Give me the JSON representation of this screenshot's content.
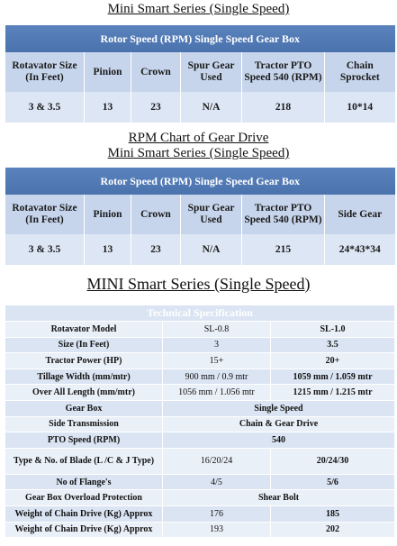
{
  "gear_tables": [
    {
      "heading_lines": [
        "Mini Smart Series (Single Speed)"
      ],
      "caption": "Rotor Speed (RPM) Single Speed Gear  Box",
      "columns": [
        "Rotavator Size (In Feet)",
        "Pinion",
        "Crown",
        "Spur Gear Used",
        "Tractor PTO Speed 540 (RPM)",
        "Chain Sprocket"
      ],
      "rows": [
        [
          "3 & 3.5",
          "13",
          "23",
          "N/A",
          "218",
          "10*14"
        ]
      ]
    },
    {
      "heading_lines": [
        "RPM Chart of Gear Drive",
        "Mini Smart Series (Single Speed)"
      ],
      "caption": "Rotor Speed (RPM) Single Speed Gear  Box",
      "columns": [
        "Rotavator Size (In Feet)",
        "Pinion",
        "Crown",
        "Spur Gear Used",
        "Tractor PTO Speed 540 (RPM)",
        "Side Gear"
      ],
      "rows": [
        [
          "3 & 3.5",
          "13",
          "23",
          "N/A",
          "215",
          "24*43*34"
        ]
      ]
    }
  ],
  "spec": {
    "heading": "MINI Smart Series (Single Speed)",
    "caption": "Technical Specification",
    "rows": [
      [
        "Rotavator Model",
        "SL-0.8",
        "SL-1.0"
      ],
      [
        "Size (In Feet)",
        "3",
        "3.5"
      ],
      [
        "Tractor Power (HP)",
        "15+",
        "20+"
      ],
      [
        "Tillage Width (mm/mtr)",
        "900 mm / 0.9 mtr",
        "1059 mm / 1.059 mtr"
      ],
      [
        "Over All Length (mm/mtr)",
        "1056 mm / 1.056 mtr",
        "1215 mm / 1.215 mtr"
      ],
      [
        "Gear Box",
        "Single Speed"
      ],
      [
        "Side Transmission",
        "Chain & Gear Drive"
      ],
      [
        "PTO Speed (RPM)",
        "540"
      ],
      [
        "Type & No. of Blade (L /C & J Type)",
        "16/20/24",
        "20/24/30"
      ],
      [
        "No of Flange's",
        "4/5",
        "5/6"
      ],
      [
        "Gear Box Overload Protection",
        "Shear Bolt"
      ],
      [
        "Weight of Chain Drive (Kg) Approx",
        "176",
        "185"
      ],
      [
        "Weight of Chain Drive (Kg) Approx",
        "193",
        "202"
      ]
    ]
  }
}
